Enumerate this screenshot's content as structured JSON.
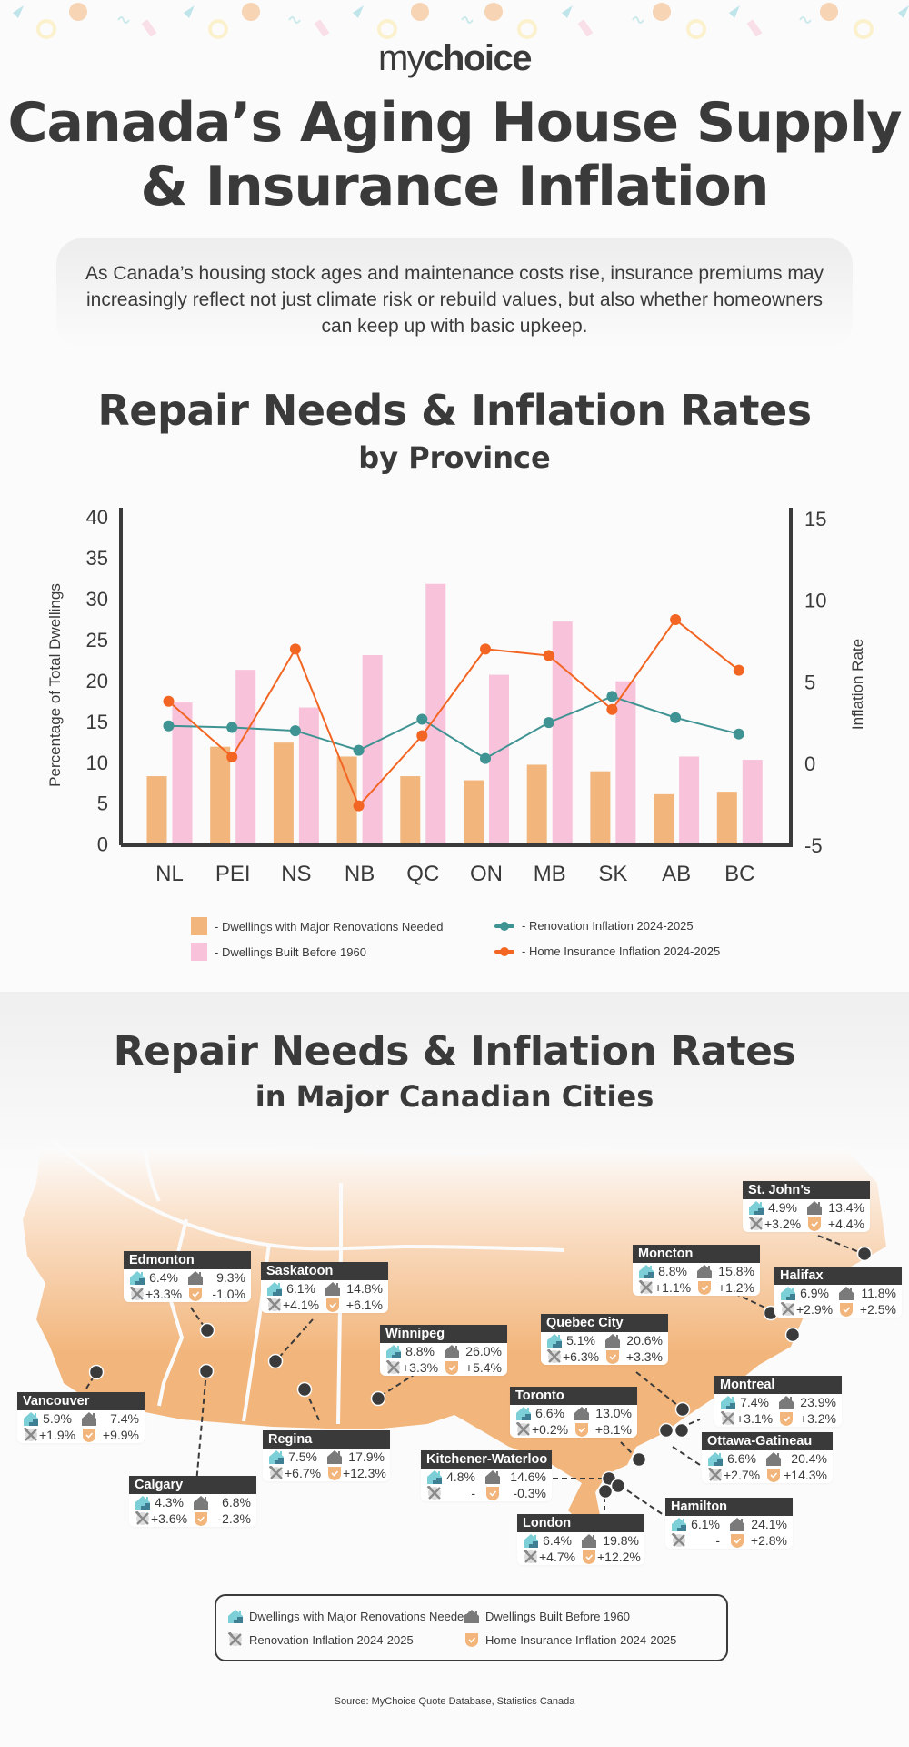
{
  "header": {
    "logo_my": "my",
    "logo_choice": "choice",
    "title_line1": "Canada’s Aging House Supply",
    "title_line2": "& Insurance Inflation",
    "intro": "As Canada’s housing stock ages and maintenance costs rise, insurance premiums may increasingly reflect not just climate risk or rebuild values, but also whether homeowners can keep up with basic upkeep."
  },
  "colors": {
    "text": "#3a3a3a",
    "renovations_bar": "#f2b57b",
    "pre1960_bar": "#f7c2da",
    "renovation_inflation_line": "#3f9393",
    "insurance_inflation_line": "#f26522",
    "map_fill": "#f2b57b",
    "house_teal": "#7ccfd6",
    "house_gray": "#7a7a7a"
  },
  "province_section": {
    "title": "Repair Needs & Inflation Rates",
    "subtitle": "by Province"
  },
  "chart_data": {
    "type": "bar",
    "title": "Repair Needs & Inflation Rates by Province",
    "categories": [
      "NL",
      "PEI",
      "NS",
      "NB",
      "QC",
      "ON",
      "MB",
      "SK",
      "AB",
      "BC"
    ],
    "ylabel": "Percentage of Total Dwellings",
    "ylabel_right": "Inflation Rate",
    "ylim": [
      0,
      40
    ],
    "yticks": [
      0,
      5,
      10,
      15,
      20,
      25,
      30,
      35,
      40
    ],
    "ylim_right": [
      -5,
      15
    ],
    "yticks_right": [
      -5,
      0,
      5,
      10,
      15
    ],
    "grid": false,
    "legend_position": "bottom",
    "series": [
      {
        "name": "Dwellings with Major Renovations Needed",
        "type": "bar",
        "axis": "left",
        "color": "#f2b57b",
        "values": [
          8.3,
          11.9,
          12.4,
          10.7,
          8.3,
          7.8,
          9.7,
          8.9,
          6.1,
          6.4
        ]
      },
      {
        "name": "Dwellings Built Before 1960",
        "type": "bar",
        "axis": "left",
        "color": "#f7c2da",
        "values": [
          17.3,
          21.3,
          16.7,
          23.1,
          31.8,
          20.7,
          27.2,
          19.9,
          10.7,
          10.3
        ]
      },
      {
        "name": "Renovation Inflation 2024-2025",
        "type": "line",
        "axis": "right",
        "color": "#3f9393",
        "values": [
          2.3,
          2.2,
          2.0,
          0.8,
          2.7,
          0.3,
          2.5,
          4.1,
          2.8,
          1.8
        ]
      },
      {
        "name": "Home Insurance Inflation 2024-2025",
        "type": "line",
        "axis": "right",
        "color": "#f26522",
        "values": [
          3.8,
          0.4,
          7.0,
          -2.6,
          1.7,
          7.0,
          6.6,
          3.3,
          8.8,
          5.7
        ]
      }
    ]
  },
  "chart_legend": [
    {
      "label": "- Dwellings with Major Renovations Needed",
      "kind": "bar",
      "color": "#f2b57b"
    },
    {
      "label": "- Dwellings Built Before 1960",
      "kind": "bar",
      "color": "#f7c2da"
    },
    {
      "label": "- Renovation Inflation 2024-2025",
      "kind": "line",
      "color": "#3f9393"
    },
    {
      "label": "- Home Insurance Inflation 2024-2025",
      "kind": "line",
      "color": "#f26522"
    }
  ],
  "city_section": {
    "title": "Repair Needs & Inflation Rates",
    "subtitle": "in Major Canadian Cities"
  },
  "cities": [
    {
      "name": "Edmonton",
      "renovations": "6.4%",
      "pre1960": "9.3%",
      "renovation_inflation": "+3.3%",
      "insurance_inflation": "-1.0%"
    },
    {
      "name": "Saskatoon",
      "renovations": "6.1%",
      "pre1960": "14.8%",
      "renovation_inflation": "+4.1%",
      "insurance_inflation": "+6.1%"
    },
    {
      "name": "Winnipeg",
      "renovations": "8.8%",
      "pre1960": "26.0%",
      "renovation_inflation": "+3.3%",
      "insurance_inflation": "+5.4%"
    },
    {
      "name": "Vancouver",
      "renovations": "5.9%",
      "pre1960": "7.4%",
      "renovation_inflation": "+1.9%",
      "insurance_inflation": "+9.9%"
    },
    {
      "name": "Regina",
      "renovations": "7.5%",
      "pre1960": "17.9%",
      "renovation_inflation": "+6.7%",
      "insurance_inflation": "+12.3%"
    },
    {
      "name": "Calgary",
      "renovations": "4.3%",
      "pre1960": "6.8%",
      "renovation_inflation": "+3.6%",
      "insurance_inflation": "-2.3%"
    },
    {
      "name": "Quebec City",
      "renovations": "5.1%",
      "pre1960": "20.6%",
      "renovation_inflation": "+6.3%",
      "insurance_inflation": "+3.3%"
    },
    {
      "name": "Toronto",
      "renovations": "6.6%",
      "pre1960": "13.0%",
      "renovation_inflation": "+0.2%",
      "insurance_inflation": "+8.1%"
    },
    {
      "name": "Kitchener-Waterloo",
      "renovations": "4.8%",
      "pre1960": "14.6%",
      "renovation_inflation": "-",
      "insurance_inflation": "-0.3%"
    },
    {
      "name": "London",
      "renovations": "6.4%",
      "pre1960": "19.8%",
      "renovation_inflation": "+4.7%",
      "insurance_inflation": "+12.2%"
    },
    {
      "name": "Hamilton",
      "renovations": "6.1%",
      "pre1960": "24.1%",
      "renovation_inflation": "-",
      "insurance_inflation": "+2.8%"
    },
    {
      "name": "St. John’s",
      "renovations": "4.9%",
      "pre1960": "13.4%",
      "renovation_inflation": "+3.2%",
      "insurance_inflation": "+4.4%"
    },
    {
      "name": "Moncton",
      "renovations": "8.8%",
      "pre1960": "15.8%",
      "renovation_inflation": "+1.1%",
      "insurance_inflation": "+1.2%"
    },
    {
      "name": "Halifax",
      "renovations": "6.9%",
      "pre1960": "11.8%",
      "renovation_inflation": "+2.9%",
      "insurance_inflation": "+2.5%"
    },
    {
      "name": "Montreal",
      "renovations": "7.4%",
      "pre1960": "23.9%",
      "renovation_inflation": "+3.1%",
      "insurance_inflation": "+3.2%"
    },
    {
      "name": "Ottawa-Gatineau",
      "renovations": "6.6%",
      "pre1960": "20.4%",
      "renovation_inflation": "+2.7%",
      "insurance_inflation": "+14.3%"
    }
  ],
  "map_legend": {
    "renovations": "Dwellings with Major Renovations Needed",
    "pre1960": "Dwellings Built Before 1960",
    "renovation_inflation": "Renovation Inflation 2024-2025",
    "insurance_inflation": "Home Insurance Inflation 2024-2025"
  },
  "footer": {
    "source": "Source: MyChoice Quote Database, Statistics Canada"
  }
}
